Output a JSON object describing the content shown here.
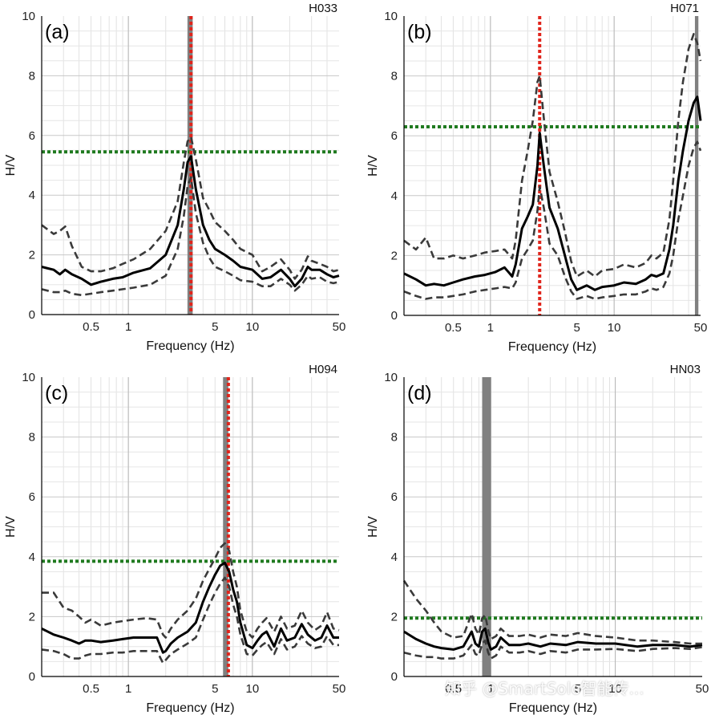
{
  "figure": {
    "watermark": "知乎 @SmartSolo智能传..."
  },
  "chart_data": [
    {
      "type": "line",
      "panel_label": "(a)",
      "station": "H033",
      "xlabel": "Frequency (Hz)",
      "ylabel": "H/V",
      "xscale": "log",
      "xlim": [
        0.2,
        50
      ],
      "ylim": [
        0,
        10
      ],
      "xticks": [
        0.5,
        1,
        5,
        10,
        50
      ],
      "xtick_labels": [
        "0.5",
        "1",
        "5",
        "10",
        "50"
      ],
      "yticks": [
        0,
        2,
        4,
        6,
        8,
        10
      ],
      "peak_frequency": 3.2,
      "peak_band": [
        3.0,
        3.3
      ],
      "threshold": 5.45,
      "series": [
        {
          "name": "mean",
          "x": [
            0.2,
            0.25,
            0.28,
            0.31,
            0.35,
            0.42,
            0.5,
            0.6,
            0.75,
            0.9,
            1.1,
            1.5,
            2.0,
            2.5,
            2.8,
            3.0,
            3.2,
            3.5,
            4.0,
            4.5,
            5,
            6,
            7,
            8,
            10,
            12,
            14,
            17,
            20,
            22,
            25,
            28,
            30,
            35,
            40,
            45,
            50
          ],
          "y": [
            1.6,
            1.5,
            1.35,
            1.5,
            1.35,
            1.2,
            1.0,
            1.1,
            1.2,
            1.25,
            1.4,
            1.55,
            2.0,
            3.0,
            4.2,
            5.1,
            5.3,
            4.2,
            3.0,
            2.5,
            2.2,
            2.0,
            1.8,
            1.6,
            1.5,
            1.2,
            1.25,
            1.5,
            1.2,
            0.95,
            1.2,
            1.6,
            1.5,
            1.5,
            1.35,
            1.25,
            1.3
          ]
        },
        {
          "name": "mean+std",
          "x": [
            0.2,
            0.25,
            0.28,
            0.31,
            0.35,
            0.42,
            0.5,
            0.6,
            0.75,
            0.9,
            1.1,
            1.5,
            2.0,
            2.5,
            2.8,
            3.0,
            3.2,
            3.5,
            4.0,
            4.5,
            5,
            6,
            7,
            8,
            10,
            12,
            14,
            17,
            20,
            22,
            25,
            28,
            30,
            35,
            40,
            45,
            50
          ],
          "y": [
            3.0,
            2.7,
            2.8,
            2.95,
            2.3,
            1.6,
            1.45,
            1.45,
            1.55,
            1.7,
            1.85,
            2.2,
            2.8,
            3.8,
            5.1,
            5.8,
            5.95,
            5.2,
            3.9,
            3.5,
            3.1,
            2.8,
            2.5,
            2.2,
            2.0,
            1.45,
            1.6,
            1.85,
            1.5,
            1.2,
            1.5,
            1.95,
            1.8,
            1.7,
            1.6,
            1.45,
            1.5
          ]
        },
        {
          "name": "mean-std",
          "x": [
            0.2,
            0.25,
            0.28,
            0.31,
            0.35,
            0.42,
            0.5,
            0.6,
            0.75,
            0.9,
            1.1,
            1.5,
            2.0,
            2.5,
            2.8,
            3.0,
            3.2,
            3.5,
            4.0,
            4.5,
            5,
            6,
            7,
            8,
            10,
            12,
            14,
            17,
            20,
            22,
            25,
            28,
            30,
            35,
            40,
            45,
            50
          ],
          "y": [
            0.85,
            0.75,
            0.75,
            0.8,
            0.7,
            0.65,
            0.7,
            0.75,
            0.8,
            0.85,
            0.9,
            1.0,
            1.3,
            2.2,
            3.3,
            4.3,
            4.6,
            3.4,
            2.4,
            1.9,
            1.6,
            1.45,
            1.3,
            1.15,
            1.1,
            0.95,
            0.95,
            1.2,
            1.0,
            0.8,
            1.0,
            1.3,
            1.2,
            1.25,
            1.1,
            1.05,
            1.1
          ]
        }
      ]
    },
    {
      "type": "line",
      "panel_label": "(b)",
      "station": "H071",
      "xlabel": "Frequency (Hz)",
      "ylabel": "H/V",
      "xscale": "log",
      "xlim": [
        0.2,
        50
      ],
      "ylim": [
        0,
        10
      ],
      "xticks": [
        0.5,
        1,
        5,
        10,
        50
      ],
      "xtick_labels": [
        "0.5",
        "1",
        "5",
        "10",
        "50"
      ],
      "yticks": [
        0,
        2,
        4,
        6,
        8,
        10
      ],
      "peak_frequency": 2.5,
      "peak_band": [
        45,
        48
      ],
      "threshold": 6.3,
      "series": [
        {
          "name": "mean",
          "x": [
            0.2,
            0.25,
            0.3,
            0.35,
            0.42,
            0.5,
            0.6,
            0.75,
            0.9,
            1.1,
            1.3,
            1.5,
            1.6,
            1.8,
            2.0,
            2.2,
            2.4,
            2.5,
            2.7,
            3.0,
            3.5,
            4.0,
            4.5,
            5,
            6,
            7,
            8,
            10,
            12,
            15,
            18,
            20,
            22,
            25,
            28,
            30,
            33,
            36,
            40,
            44,
            47,
            50
          ],
          "y": [
            1.4,
            1.2,
            1.0,
            1.05,
            1.0,
            1.1,
            1.2,
            1.3,
            1.35,
            1.45,
            1.6,
            1.3,
            1.7,
            2.9,
            3.3,
            3.7,
            5.0,
            6.1,
            5.0,
            3.6,
            2.9,
            2.0,
            1.2,
            0.85,
            1.0,
            0.85,
            0.95,
            1.0,
            1.1,
            1.05,
            1.2,
            1.35,
            1.3,
            1.4,
            2.2,
            3.0,
            4.5,
            5.5,
            6.5,
            7.1,
            7.3,
            6.5
          ]
        },
        {
          "name": "mean+std",
          "x": [
            0.2,
            0.25,
            0.3,
            0.35,
            0.42,
            0.5,
            0.6,
            0.75,
            0.9,
            1.1,
            1.3,
            1.5,
            1.6,
            1.8,
            2.0,
            2.2,
            2.4,
            2.5,
            2.7,
            3.0,
            3.5,
            4.0,
            4.5,
            5,
            6,
            7,
            8,
            10,
            12,
            15,
            18,
            20,
            22,
            25,
            28,
            30,
            33,
            36,
            40,
            44,
            47,
            50
          ],
          "y": [
            2.5,
            2.2,
            2.6,
            1.9,
            1.9,
            2.0,
            1.9,
            2.0,
            2.1,
            2.15,
            2.2,
            1.9,
            2.5,
            4.5,
            5.5,
            6.5,
            7.8,
            8.0,
            6.6,
            4.8,
            3.8,
            2.8,
            1.8,
            1.3,
            1.5,
            1.3,
            1.5,
            1.55,
            1.7,
            1.6,
            1.75,
            2.0,
            1.9,
            2.1,
            3.2,
            4.5,
            6.5,
            7.8,
            8.9,
            9.4,
            9.1,
            8.5
          ]
        },
        {
          "name": "mean-std",
          "x": [
            0.2,
            0.25,
            0.3,
            0.35,
            0.42,
            0.5,
            0.6,
            0.75,
            0.9,
            1.1,
            1.3,
            1.5,
            1.6,
            1.8,
            2.0,
            2.2,
            2.4,
            2.5,
            2.7,
            3.0,
            3.5,
            4.0,
            4.5,
            5,
            6,
            7,
            8,
            10,
            12,
            15,
            18,
            20,
            22,
            25,
            28,
            30,
            33,
            36,
            40,
            44,
            47,
            50
          ],
          "y": [
            0.8,
            0.65,
            0.55,
            0.6,
            0.6,
            0.65,
            0.7,
            0.8,
            0.85,
            0.9,
            0.95,
            0.9,
            1.1,
            1.9,
            2.2,
            2.5,
            3.5,
            4.3,
            3.6,
            2.4,
            2.0,
            1.3,
            0.8,
            0.55,
            0.65,
            0.55,
            0.6,
            0.65,
            0.7,
            0.7,
            0.8,
            0.9,
            0.85,
            0.95,
            1.4,
            2.0,
            3.2,
            4.0,
            5.0,
            5.6,
            5.8,
            5.5
          ]
        }
      ]
    },
    {
      "type": "line",
      "panel_label": "(c)",
      "station": "H094",
      "xlabel": "Frequency (Hz)",
      "ylabel": "H/V",
      "xscale": "log",
      "xlim": [
        0.2,
        50
      ],
      "ylim": [
        0,
        10
      ],
      "xticks": [
        0.5,
        1,
        5,
        10,
        50
      ],
      "xtick_labels": [
        "0.5",
        "1",
        "5",
        "10",
        "50"
      ],
      "yticks": [
        0,
        2,
        4,
        6,
        8,
        10
      ],
      "peak_frequency": 6.4,
      "peak_band": [
        5.8,
        6.4
      ],
      "threshold": 3.85,
      "series": [
        {
          "name": "mean",
          "x": [
            0.2,
            0.25,
            0.3,
            0.35,
            0.4,
            0.45,
            0.5,
            0.6,
            0.75,
            0.9,
            1.1,
            1.4,
            1.7,
            1.9,
            2.0,
            2.2,
            2.5,
            3.0,
            3.5,
            4.0,
            4.5,
            5.0,
            5.5,
            6.0,
            6.5,
            7.0,
            7.5,
            8.0,
            9.0,
            10,
            11,
            12,
            13,
            15,
            17,
            19,
            22,
            25,
            28,
            32,
            36,
            40,
            45,
            50
          ],
          "y": [
            1.6,
            1.4,
            1.3,
            1.2,
            1.1,
            1.2,
            1.2,
            1.15,
            1.2,
            1.25,
            1.3,
            1.3,
            1.3,
            0.8,
            0.85,
            1.1,
            1.3,
            1.5,
            1.8,
            2.5,
            3.0,
            3.4,
            3.7,
            3.8,
            3.5,
            2.9,
            2.5,
            1.8,
            1.05,
            0.95,
            1.2,
            1.4,
            1.5,
            1.0,
            1.6,
            1.2,
            1.3,
            1.75,
            1.4,
            1.2,
            1.3,
            1.7,
            1.3,
            1.3
          ]
        },
        {
          "name": "mean+std",
          "x": [
            0.2,
            0.25,
            0.3,
            0.35,
            0.4,
            0.45,
            0.5,
            0.6,
            0.75,
            0.9,
            1.1,
            1.4,
            1.7,
            1.9,
            2.0,
            2.2,
            2.5,
            3.0,
            3.5,
            4.0,
            4.5,
            5.0,
            5.5,
            6.0,
            6.5,
            7.0,
            7.5,
            8.0,
            9.0,
            10,
            11,
            12,
            13,
            15,
            17,
            19,
            22,
            25,
            28,
            32,
            36,
            40,
            45,
            50
          ],
          "y": [
            2.8,
            2.8,
            2.3,
            2.2,
            2.0,
            1.8,
            1.9,
            1.7,
            1.8,
            1.85,
            1.9,
            1.95,
            1.9,
            1.4,
            1.3,
            1.6,
            1.9,
            2.2,
            2.6,
            3.2,
            3.6,
            3.95,
            4.3,
            4.45,
            4.2,
            3.5,
            3.0,
            2.2,
            1.5,
            1.3,
            1.6,
            1.8,
            1.95,
            1.5,
            2.0,
            1.6,
            1.7,
            2.2,
            1.8,
            1.55,
            1.7,
            2.15,
            1.6,
            1.55
          ]
        },
        {
          "name": "mean-std",
          "x": [
            0.2,
            0.25,
            0.3,
            0.35,
            0.4,
            0.45,
            0.5,
            0.6,
            0.75,
            0.9,
            1.1,
            1.4,
            1.7,
            1.9,
            2.0,
            2.2,
            2.5,
            3.0,
            3.5,
            4.0,
            4.5,
            5.0,
            5.5,
            6.0,
            6.5,
            7.0,
            7.5,
            8.0,
            9.0,
            10,
            11,
            12,
            13,
            15,
            17,
            19,
            22,
            25,
            28,
            32,
            36,
            40,
            45,
            50
          ],
          "y": [
            0.9,
            0.85,
            0.75,
            0.6,
            0.6,
            0.7,
            0.75,
            0.75,
            0.8,
            0.8,
            0.85,
            0.85,
            0.85,
            0.45,
            0.55,
            0.75,
            0.9,
            1.1,
            1.3,
            1.9,
            2.4,
            2.8,
            3.1,
            3.3,
            3.0,
            2.4,
            2.0,
            1.4,
            0.75,
            0.7,
            0.9,
            1.05,
            1.15,
            0.75,
            1.25,
            0.9,
            1.0,
            1.35,
            1.1,
            0.95,
            1.0,
            1.35,
            1.05,
            1.05
          ]
        }
      ]
    },
    {
      "type": "line",
      "panel_label": "(d)",
      "station": "HN03",
      "xlabel": "Frequency (Hz)",
      "ylabel": "H/V",
      "xscale": "log",
      "xlim": [
        0.2,
        50
      ],
      "ylim": [
        0,
        10
      ],
      "xticks": [
        0.5,
        1,
        5,
        10,
        50
      ],
      "xtick_labels": [
        "0.5",
        "1",
        "5",
        "10",
        "50"
      ],
      "yticks": [
        0,
        2,
        4,
        6,
        8,
        10
      ],
      "peak_frequency": null,
      "peak_band": [
        0.85,
        1.0
      ],
      "threshold": 1.95,
      "series": [
        {
          "name": "mean",
          "x": [
            0.2,
            0.25,
            0.3,
            0.35,
            0.4,
            0.5,
            0.6,
            0.7,
            0.75,
            0.8,
            0.85,
            0.9,
            0.95,
            1.0,
            1.1,
            1.2,
            1.4,
            1.7,
            2.0,
            2.5,
            3,
            4,
            5,
            7,
            10,
            15,
            20,
            30,
            40,
            50
          ],
          "y": [
            1.5,
            1.25,
            1.1,
            1.0,
            0.95,
            0.9,
            1.0,
            1.5,
            1.1,
            1.0,
            1.5,
            1.6,
            1.15,
            0.9,
            1.0,
            1.3,
            1.05,
            1.05,
            1.1,
            1.0,
            1.1,
            1.05,
            1.15,
            1.1,
            1.1,
            1.0,
            1.05,
            1.05,
            1.0,
            1.05
          ]
        },
        {
          "name": "mean+std",
          "x": [
            0.2,
            0.25,
            0.3,
            0.35,
            0.4,
            0.5,
            0.6,
            0.7,
            0.75,
            0.8,
            0.85,
            0.9,
            0.95,
            1.0,
            1.1,
            1.2,
            1.4,
            1.7,
            2.0,
            2.5,
            3,
            4,
            5,
            7,
            10,
            15,
            20,
            30,
            40,
            50
          ],
          "y": [
            3.2,
            2.6,
            2.2,
            1.8,
            1.5,
            1.3,
            1.35,
            2.1,
            1.6,
            1.4,
            1.95,
            2.05,
            1.55,
            1.25,
            1.35,
            1.6,
            1.35,
            1.35,
            1.4,
            1.3,
            1.4,
            1.35,
            1.45,
            1.35,
            1.3,
            1.2,
            1.2,
            1.15,
            1.1,
            1.1
          ]
        },
        {
          "name": "mean-std",
          "x": [
            0.2,
            0.25,
            0.3,
            0.35,
            0.4,
            0.5,
            0.6,
            0.7,
            0.75,
            0.8,
            0.85,
            0.9,
            0.95,
            1.0,
            1.1,
            1.2,
            1.4,
            1.7,
            2.0,
            2.5,
            3,
            4,
            5,
            7,
            10,
            15,
            20,
            30,
            40,
            50
          ],
          "y": [
            0.8,
            0.7,
            0.65,
            0.65,
            0.6,
            0.6,
            0.7,
            1.05,
            0.75,
            0.7,
            1.1,
            1.2,
            0.8,
            0.6,
            0.7,
            1.0,
            0.8,
            0.8,
            0.85,
            0.75,
            0.85,
            0.8,
            0.9,
            0.9,
            0.92,
            0.85,
            0.92,
            0.95,
            0.92,
            0.98
          ]
        }
      ]
    }
  ]
}
